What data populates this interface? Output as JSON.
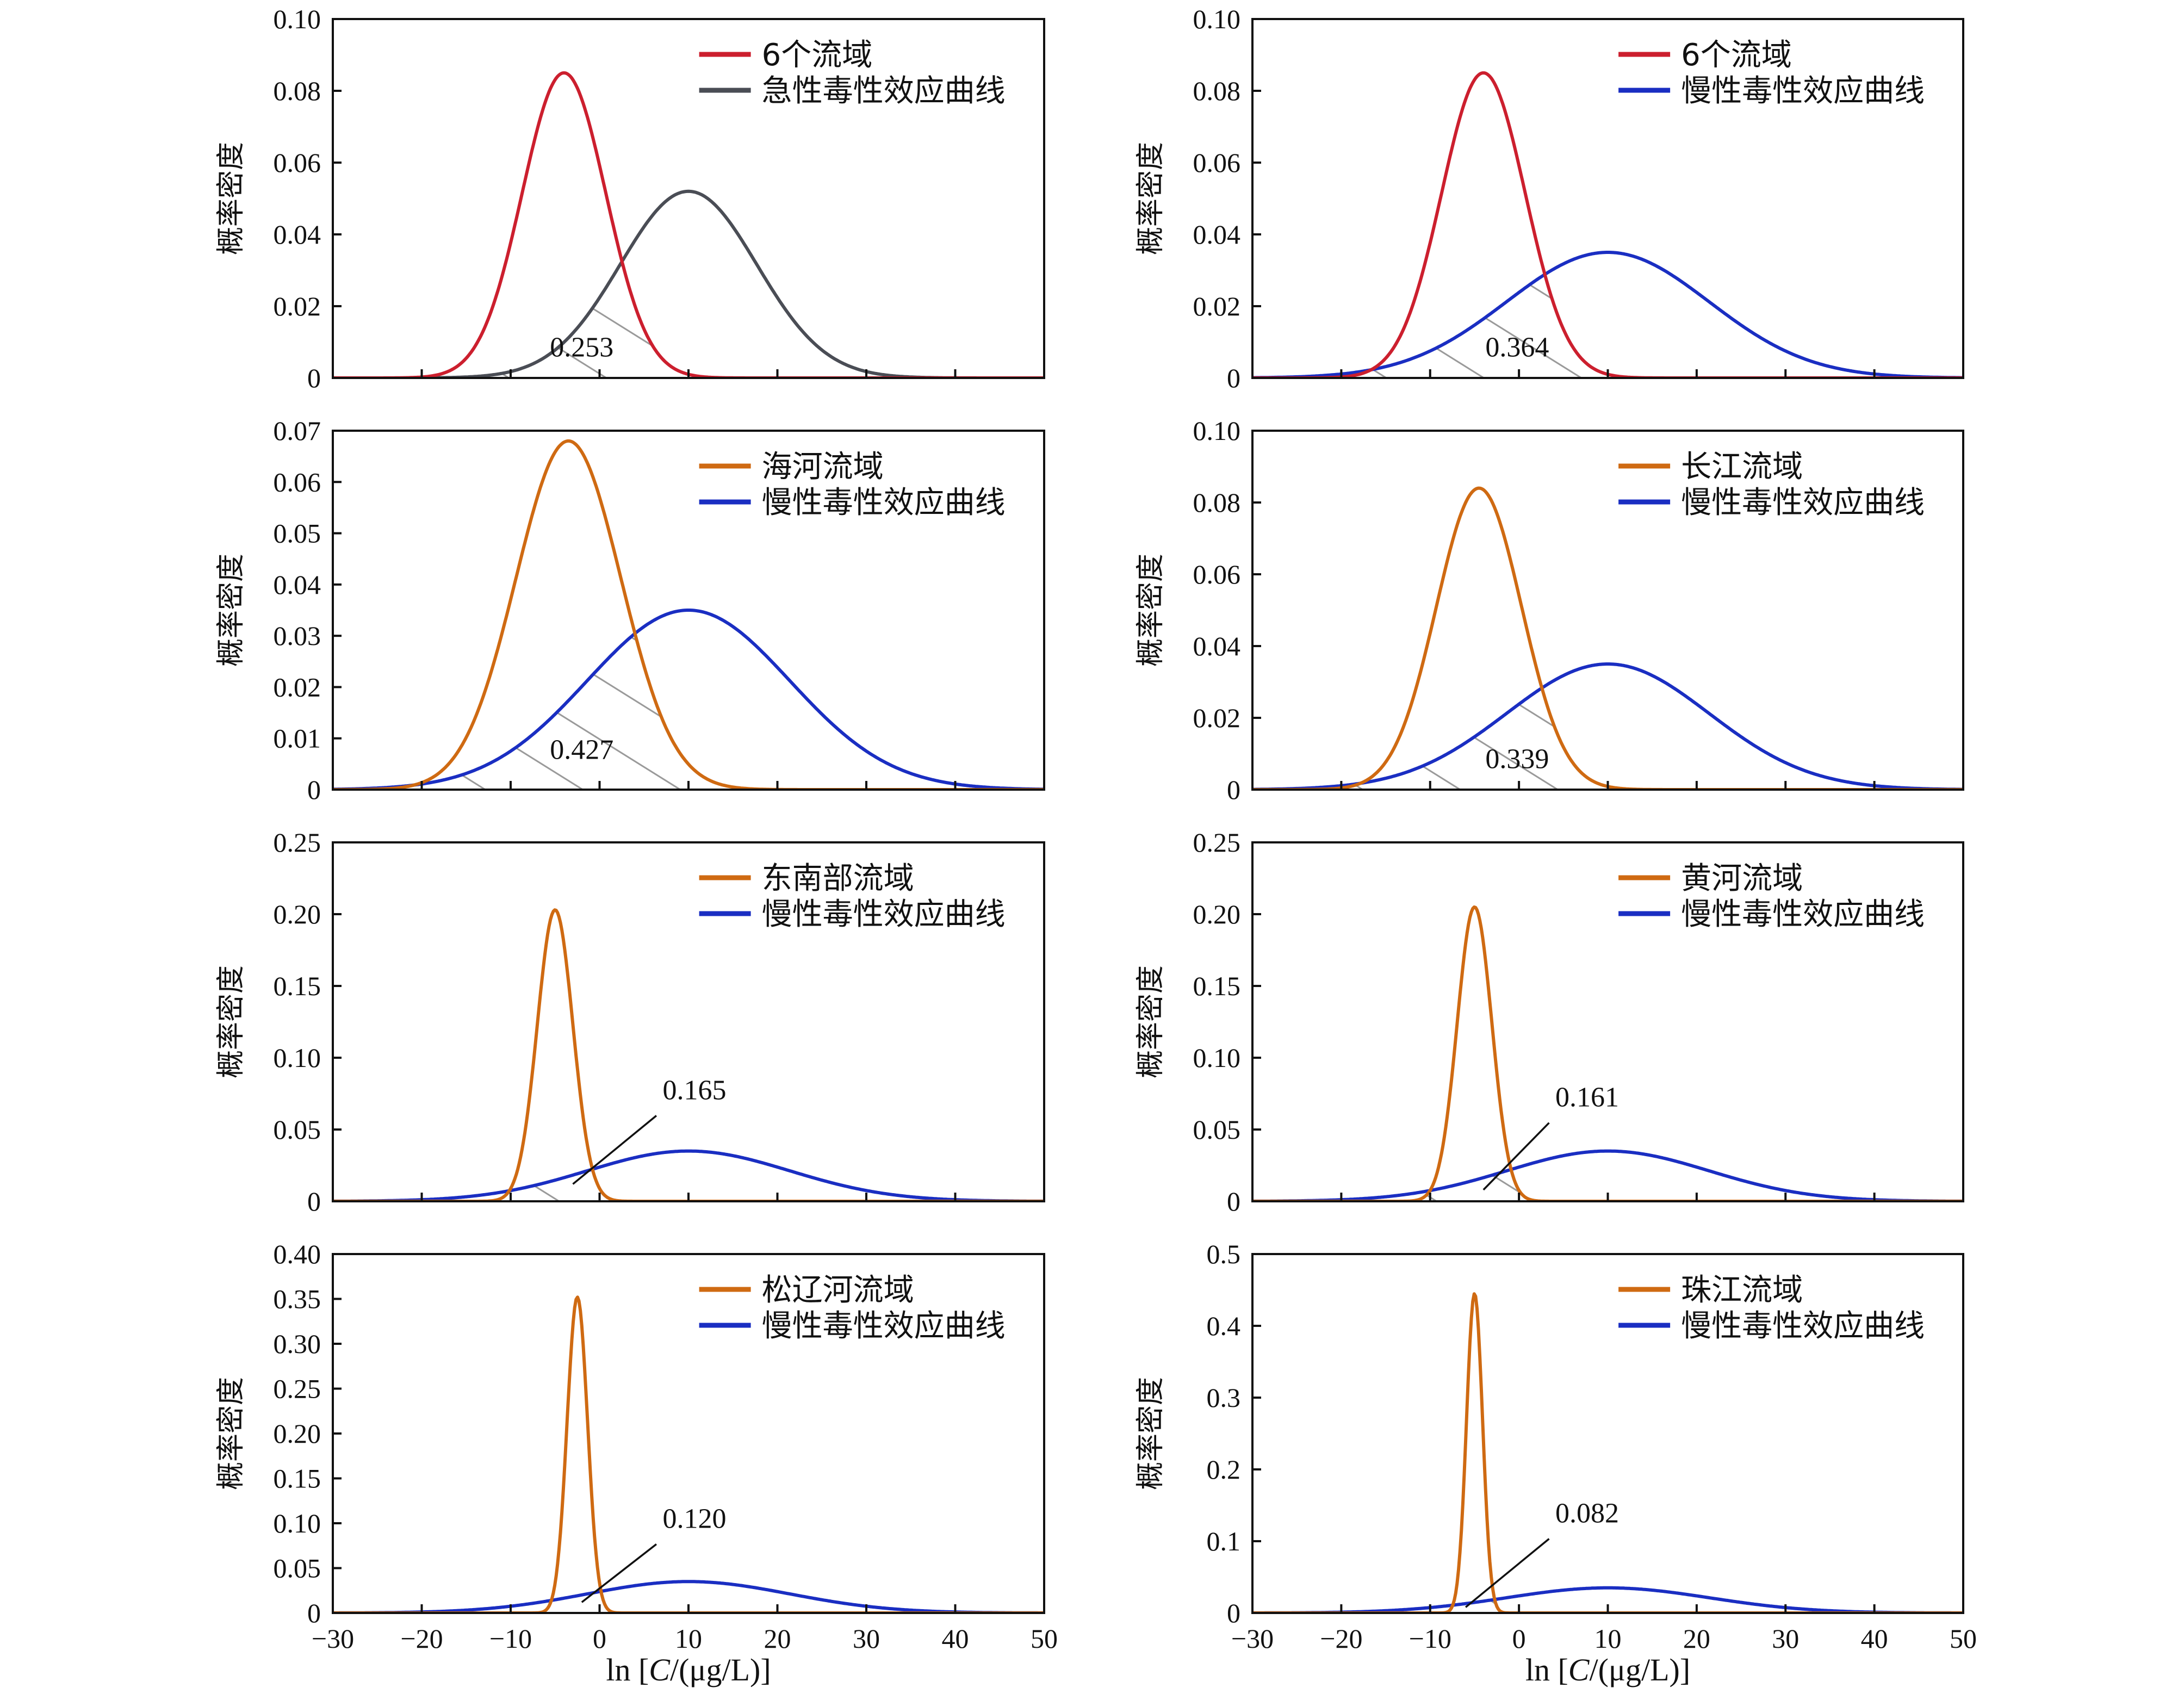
{
  "figure": {
    "xlabel_prefix": "ln [",
    "xlabel_var": "C",
    "xlabel_suffix": "/(μg/L)]",
    "ylabel": "概率密度"
  },
  "colors": {
    "red": "#cc1f2e",
    "gray": "#4a4d55",
    "orange": "#cf6a12",
    "blue": "#1a2ec2",
    "hatch": "#9a9a9a"
  },
  "chart_data": [
    {
      "type": "line",
      "row": 0,
      "col": 0,
      "xlim": [
        -30,
        50
      ],
      "ylim": [
        0,
        0.1
      ],
      "x_ticks": [
        -30,
        -20,
        -10,
        0,
        10,
        20,
        30,
        40,
        50
      ],
      "y_ticks": [
        "0",
        "0.02",
        "0.04",
        "0.06",
        "0.08",
        "0.10"
      ],
      "show_x_ticklabels": false,
      "ylabel": "概率密度",
      "series": [
        {
          "name": "6个流域",
          "color": "red",
          "mean": -4.0,
          "sd": 4.7,
          "peak": 0.085
        },
        {
          "name": "急性毒性效应曲线",
          "color": "gray",
          "mean": 10.0,
          "sd": 7.7,
          "peak": 0.052
        }
      ],
      "overlap_label": "0.253",
      "annotation": {
        "x": -2.0,
        "y": 0.006,
        "leader": false
      }
    },
    {
      "type": "line",
      "row": 0,
      "col": 1,
      "xlim": [
        -30,
        50
      ],
      "ylim": [
        0,
        0.1
      ],
      "x_ticks": [
        -30,
        -20,
        -10,
        0,
        10,
        20,
        30,
        40,
        50
      ],
      "y_ticks": [
        "0",
        "0.02",
        "0.04",
        "0.06",
        "0.08",
        "0.10"
      ],
      "show_x_ticklabels": false,
      "ylabel": "概率密度",
      "series": [
        {
          "name": "6个流域",
          "color": "red",
          "mean": -4.0,
          "sd": 4.7,
          "peak": 0.085
        },
        {
          "name": "慢性毒性效应曲线",
          "color": "blue",
          "mean": 10.0,
          "sd": 11.4,
          "peak": 0.035
        }
      ],
      "overlap_label": "0.364",
      "annotation": {
        "x": -0.2,
        "y": 0.006,
        "leader": false
      }
    },
    {
      "type": "line",
      "row": 1,
      "col": 0,
      "xlim": [
        -30,
        50
      ],
      "ylim": [
        0,
        0.07
      ],
      "x_ticks": [
        -30,
        -20,
        -10,
        0,
        10,
        20,
        30,
        40,
        50
      ],
      "y_ticks": [
        "0",
        "0.01",
        "0.02",
        "0.03",
        "0.04",
        "0.05",
        "0.06",
        "0.07"
      ],
      "show_x_ticklabels": false,
      "ylabel": "概率密度",
      "series": [
        {
          "name": "海河流域",
          "color": "orange",
          "mean": -3.5,
          "sd": 5.9,
          "peak": 0.068
        },
        {
          "name": "慢性毒性效应曲线",
          "color": "blue",
          "mean": 10.0,
          "sd": 11.4,
          "peak": 0.035
        }
      ],
      "overlap_label": "0.427",
      "annotation": {
        "x": -2.0,
        "y": 0.006,
        "leader": false
      }
    },
    {
      "type": "line",
      "row": 1,
      "col": 1,
      "xlim": [
        -30,
        50
      ],
      "ylim": [
        0,
        0.1
      ],
      "x_ticks": [
        -30,
        -20,
        -10,
        0,
        10,
        20,
        30,
        40,
        50
      ],
      "y_ticks": [
        "0",
        "0.02",
        "0.04",
        "0.06",
        "0.08",
        "0.10"
      ],
      "show_x_ticklabels": false,
      "ylabel": "概率密度",
      "series": [
        {
          "name": "长江流域",
          "color": "orange",
          "mean": -4.5,
          "sd": 4.8,
          "peak": 0.084
        },
        {
          "name": "慢性毒性效应曲线",
          "color": "blue",
          "mean": 10.0,
          "sd": 11.4,
          "peak": 0.035
        }
      ],
      "overlap_label": "0.339",
      "annotation": {
        "x": -0.2,
        "y": 0.006,
        "leader": false
      }
    },
    {
      "type": "line",
      "row": 2,
      "col": 0,
      "xlim": [
        -30,
        50
      ],
      "ylim": [
        0,
        0.25
      ],
      "x_ticks": [
        -30,
        -20,
        -10,
        0,
        10,
        20,
        30,
        40,
        50
      ],
      "y_ticks": [
        "0",
        "0.05",
        "0.10",
        "0.15",
        "0.20",
        "0.25"
      ],
      "show_x_ticklabels": false,
      "ylabel": "概率密度",
      "series": [
        {
          "name": "东南部流域",
          "color": "orange",
          "mean": -5.0,
          "sd": 2.0,
          "peak": 0.203
        },
        {
          "name": "慢性毒性效应曲线",
          "color": "blue",
          "mean": 10.0,
          "sd": 11.4,
          "peak": 0.035
        }
      ],
      "overlap_label": "0.165",
      "annotation": {
        "x": 7.0,
        "y": 0.068,
        "leader": true,
        "tx": -3.0,
        "ty": 0.012
      }
    },
    {
      "type": "line",
      "row": 2,
      "col": 1,
      "xlim": [
        -30,
        50
      ],
      "ylim": [
        0,
        0.25
      ],
      "x_ticks": [
        -30,
        -20,
        -10,
        0,
        10,
        20,
        30,
        40,
        50
      ],
      "y_ticks": [
        "0",
        "0.05",
        "0.10",
        "0.15",
        "0.20",
        "0.25"
      ],
      "show_x_ticklabels": false,
      "ylabel": "概率密度",
      "series": [
        {
          "name": "黄河流域",
          "color": "orange",
          "mean": -5.0,
          "sd": 1.95,
          "peak": 0.205
        },
        {
          "name": "慢性毒性效应曲线",
          "color": "blue",
          "mean": 10.0,
          "sd": 11.4,
          "peak": 0.035
        }
      ],
      "overlap_label": "0.161",
      "annotation": {
        "x": 4.0,
        "y": 0.063,
        "leader": true,
        "tx": -4.0,
        "ty": 0.008
      }
    },
    {
      "type": "line",
      "row": 3,
      "col": 0,
      "xlim": [
        -30,
        50
      ],
      "ylim": [
        0,
        0.4
      ],
      "x_ticks": [
        -30,
        -20,
        -10,
        0,
        10,
        20,
        30,
        40,
        50
      ],
      "y_ticks": [
        "0",
        "0.05",
        "0.10",
        "0.15",
        "0.20",
        "0.25",
        "0.30",
        "0.35",
        "0.40"
      ],
      "show_x_ticklabels": true,
      "ylabel": "概率密度",
      "series": [
        {
          "name": "松辽河流域",
          "color": "orange",
          "mean": -2.5,
          "sd": 1.15,
          "peak": 0.352
        },
        {
          "name": "慢性毒性效应曲线",
          "color": "blue",
          "mean": 10.0,
          "sd": 11.4,
          "peak": 0.035
        }
      ],
      "overlap_label": "0.120",
      "annotation": {
        "x": 7.0,
        "y": 0.09,
        "leader": true,
        "tx": -2.0,
        "ty": 0.012
      }
    },
    {
      "type": "line",
      "row": 3,
      "col": 1,
      "xlim": [
        -30,
        50
      ],
      "ylim": [
        0,
        0.5
      ],
      "x_ticks": [
        -30,
        -20,
        -10,
        0,
        10,
        20,
        30,
        40,
        50
      ],
      "y_ticks": [
        "0",
        "0.1",
        "0.2",
        "0.3",
        "0.4",
        "0.5"
      ],
      "show_x_ticklabels": true,
      "ylabel": "概率密度",
      "series": [
        {
          "name": "珠江流域",
          "color": "orange",
          "mean": -5.0,
          "sd": 0.9,
          "peak": 0.445
        },
        {
          "name": "慢性毒性效应曲线",
          "color": "blue",
          "mean": 10.0,
          "sd": 11.4,
          "peak": 0.035
        }
      ],
      "overlap_label": "0.082",
      "annotation": {
        "x": 4.0,
        "y": 0.12,
        "leader": true,
        "tx": -6.0,
        "ty": 0.008
      }
    }
  ]
}
